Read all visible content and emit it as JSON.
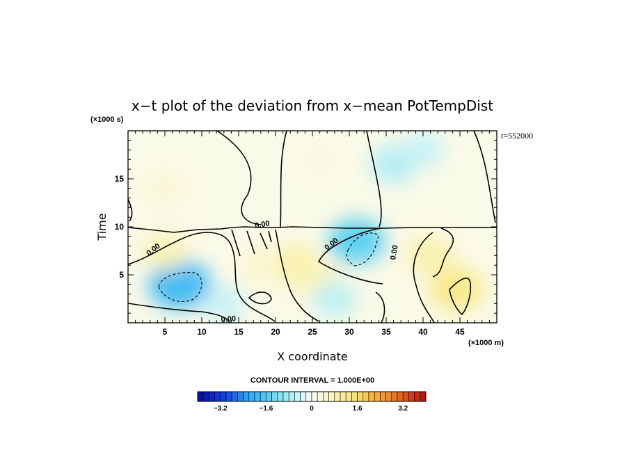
{
  "chart_data": {
    "type": "heatmap",
    "title": "x−t plot of the deviation from x−mean PotTempDist",
    "xlabel": "X coordinate",
    "ylabel": "Time",
    "x_unit": "(×1000 m)",
    "y_unit": "(×1000 s)",
    "time_stamp": "t=552000",
    "xlim": [
      0,
      50
    ],
    "ylim": [
      0,
      20
    ],
    "x_ticks": [
      5,
      10,
      15,
      20,
      25,
      30,
      35,
      40,
      45
    ],
    "x_tick_labels": [
      "5",
      "10",
      "15",
      "20",
      "25",
      "30",
      "35",
      "40",
      "45"
    ],
    "y_ticks": [
      5,
      10,
      15
    ],
    "y_tick_labels": [
      "5",
      "10",
      "15"
    ],
    "contour_interval_text": "CONTOUR INTERVAL = 1.000E+00",
    "contour_labels": [
      "0.00",
      "0.00",
      "0.00",
      "0.00",
      "0.00"
    ],
    "colorbar": {
      "min": -4,
      "max": 4,
      "step": 0.2,
      "tick_values": [
        -3.2,
        -1.6,
        0,
        1.6,
        3.2
      ],
      "tick_labels": [
        "−3.2",
        "−1.6",
        "0",
        "1.6",
        "3.2"
      ]
    },
    "anomalies": [
      {
        "x": 7,
        "y": 4,
        "value": -1.9
      },
      {
        "x": 31,
        "y": 8.5,
        "value": -1.5
      },
      {
        "x": 36,
        "y": 16.5,
        "value": -0.7
      },
      {
        "x": 40,
        "y": 18,
        "value": -0.5
      },
      {
        "x": 22.5,
        "y": 6,
        "value": 1.0
      },
      {
        "x": 25.5,
        "y": 4.5,
        "value": 0.8
      },
      {
        "x": 44.5,
        "y": 3.5,
        "value": 1.3
      },
      {
        "x": 41,
        "y": 7,
        "value": 0.9
      },
      {
        "x": 5,
        "y": 7.5,
        "value": 0.8
      },
      {
        "x": 5,
        "y": 14,
        "value": 0.45
      },
      {
        "x": 26,
        "y": 17,
        "value": 0.3
      },
      {
        "x": 13,
        "y": 2,
        "value": -0.5
      },
      {
        "x": 28,
        "y": 2.5,
        "value": -0.6
      },
      {
        "x": 18,
        "y": 6,
        "value": 0.5
      }
    ],
    "background_value": 0.22
  }
}
